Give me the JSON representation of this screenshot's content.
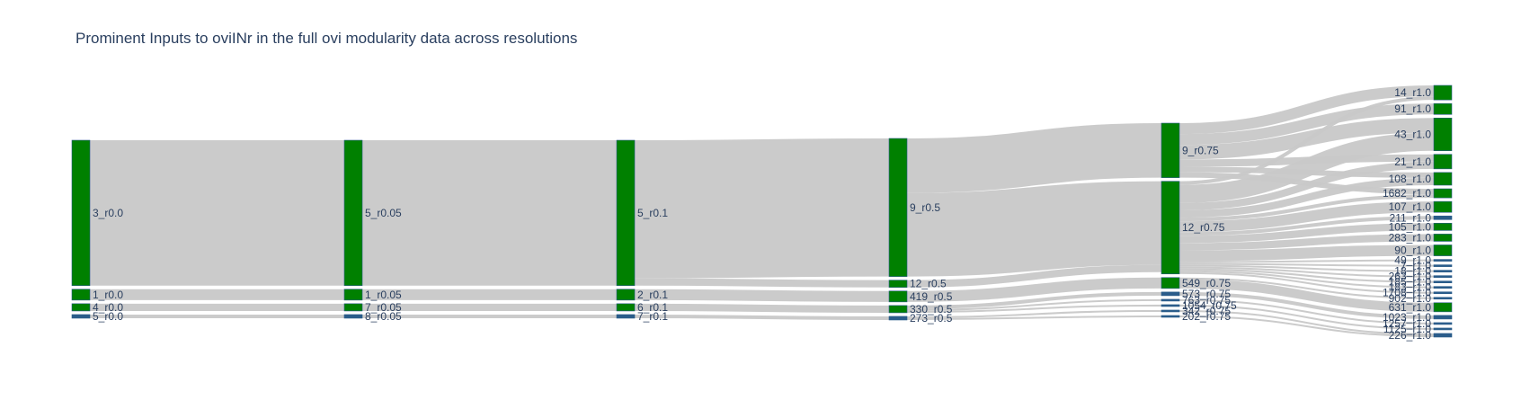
{
  "chart_data": {
    "type": "sankey",
    "title": "Prominent Inputs to oviINr in the full ovi modularity data across resolutions",
    "node_color": "#008000",
    "minor_node_color": "#2a5c8a",
    "link_color": "#c8c8c8",
    "columns": [
      [
        "3_r0.0",
        "1_r0.0",
        "4_r0.0",
        "5_r0.0"
      ],
      [
        "5_r0.05",
        "1_r0.05",
        "7_r0.05",
        "8_r0.05"
      ],
      [
        "5_r0.1",
        "2_r0.1",
        "6_r0.1",
        "7_r0.1"
      ],
      [
        "9_r0.5",
        "12_r0.5",
        "419_r0.5",
        "330_r0.5",
        "273_r0.5"
      ],
      [
        "9_r0.75",
        "12_r0.75",
        "549_r0.75",
        "573_r0.75",
        "763_r0.75",
        "1054_r0.75",
        "342_r0.75",
        "202_r0.75"
      ],
      [
        "14_r1.0",
        "91_r1.0",
        "43_r1.0",
        "21_r1.0",
        "108_r1.0",
        "1682_r1.0",
        "107_r1.0",
        "211_r1.0",
        "105_r1.0",
        "283_r1.0",
        "90_r1.0",
        "49_r1.0",
        "7_r1.0",
        "18_r1.0",
        "263_r1.0",
        "185_r1.0",
        "183_r1.0",
        "1708_r1.0",
        "902_r1.0",
        "631_r1.0",
        "1023_r1.0",
        "1257_r1.0",
        "1125_r1.0",
        "226_r1.0"
      ]
    ],
    "links": [
      {
        "source": "3_r0.0",
        "target": "5_r0.05",
        "value": 80
      },
      {
        "source": "1_r0.0",
        "target": "1_r0.05",
        "value": 6
      },
      {
        "source": "4_r0.0",
        "target": "7_r0.05",
        "value": 4
      },
      {
        "source": "5_r0.0",
        "target": "8_r0.05",
        "value": 2
      },
      {
        "source": "5_r0.05",
        "target": "5_r0.1",
        "value": 80
      },
      {
        "source": "1_r0.05",
        "target": "2_r0.1",
        "value": 6
      },
      {
        "source": "7_r0.05",
        "target": "6_r0.1",
        "value": 4
      },
      {
        "source": "8_r0.05",
        "target": "7_r0.1",
        "value": 2
      },
      {
        "source": "5_r0.1",
        "target": "9_r0.5",
        "value": 76
      },
      {
        "source": "5_r0.1",
        "target": "12_r0.5",
        "value": 4
      },
      {
        "source": "2_r0.1",
        "target": "419_r0.5",
        "value": 6
      },
      {
        "source": "6_r0.1",
        "target": "330_r0.5",
        "value": 4
      },
      {
        "source": "7_r0.1",
        "target": "273_r0.5",
        "value": 2
      },
      {
        "source": "9_r0.5",
        "target": "9_r0.75",
        "value": 30
      },
      {
        "source": "9_r0.5",
        "target": "12_r0.75",
        "value": 46
      },
      {
        "source": "12_r0.5",
        "target": "12_r0.75",
        "value": 4
      },
      {
        "source": "419_r0.5",
        "target": "549_r0.75",
        "value": 6
      },
      {
        "source": "330_r0.5",
        "target": "573_r0.75",
        "value": 2
      },
      {
        "source": "330_r0.5",
        "target": "763_r0.75",
        "value": 1
      },
      {
        "source": "330_r0.5",
        "target": "1054_r0.75",
        "value": 1
      },
      {
        "source": "273_r0.5",
        "target": "342_r0.75",
        "value": 1
      },
      {
        "source": "273_r0.5",
        "target": "202_r0.75",
        "value": 1
      },
      {
        "source": "9_r0.75",
        "target": "14_r1.0",
        "value": 6
      },
      {
        "source": "9_r0.75",
        "target": "91_r1.0",
        "value": 6
      },
      {
        "source": "9_r0.75",
        "target": "43_r1.0",
        "value": 8
      },
      {
        "source": "9_r0.75",
        "target": "21_r1.0",
        "value": 4
      },
      {
        "source": "9_r0.75",
        "target": "108_r1.0",
        "value": 3
      },
      {
        "source": "9_r0.75",
        "target": "1682_r1.0",
        "value": 3
      },
      {
        "source": "12_r0.75",
        "target": "14_r1.0",
        "value": 2
      },
      {
        "source": "12_r0.75",
        "target": "43_r1.0",
        "value": 10
      },
      {
        "source": "12_r0.75",
        "target": "21_r1.0",
        "value": 4
      },
      {
        "source": "12_r0.75",
        "target": "108_r1.0",
        "value": 4
      },
      {
        "source": "12_r0.75",
        "target": "1682_r1.0",
        "value": 2
      },
      {
        "source": "12_r0.75",
        "target": "107_r1.0",
        "value": 6
      },
      {
        "source": "12_r0.75",
        "target": "211_r1.0",
        "value": 2
      },
      {
        "source": "12_r0.75",
        "target": "105_r1.0",
        "value": 4
      },
      {
        "source": "12_r0.75",
        "target": "283_r1.0",
        "value": 4
      },
      {
        "source": "12_r0.75",
        "target": "90_r1.0",
        "value": 6
      },
      {
        "source": "12_r0.75",
        "target": "49_r1.0",
        "value": 1
      },
      {
        "source": "12_r0.75",
        "target": "7_r1.0",
        "value": 1
      },
      {
        "source": "12_r0.75",
        "target": "18_r1.0",
        "value": 1
      },
      {
        "source": "12_r0.75",
        "target": "263_r1.0",
        "value": 1
      },
      {
        "source": "12_r0.75",
        "target": "185_r1.0",
        "value": 1
      },
      {
        "source": "12_r0.75",
        "target": "183_r1.0",
        "value": 1
      },
      {
        "source": "12_r0.75",
        "target": "1708_r1.0",
        "value": 1
      },
      {
        "source": "549_r0.75",
        "target": "902_r1.0",
        "value": 1
      },
      {
        "source": "549_r0.75",
        "target": "631_r1.0",
        "value": 5
      },
      {
        "source": "573_r0.75",
        "target": "1023_r1.0",
        "value": 2
      },
      {
        "source": "763_r0.75",
        "target": "1257_r1.0",
        "value": 1
      },
      {
        "source": "1054_r0.75",
        "target": "1125_r1.0",
        "value": 1
      },
      {
        "source": "342_r0.75",
        "target": "226_r1.0",
        "value": 1
      },
      {
        "source": "202_r0.75",
        "target": "226_r1.0",
        "value": 1
      }
    ]
  }
}
